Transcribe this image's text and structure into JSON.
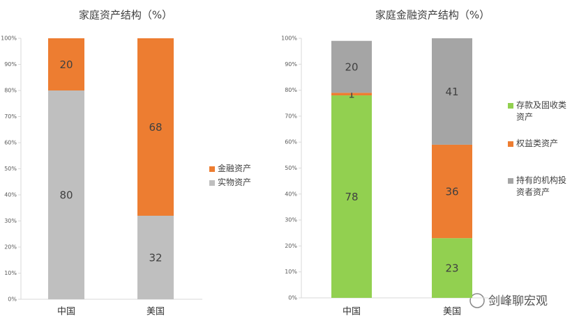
{
  "chart_data": [
    {
      "type": "stacked-bar",
      "title": "家庭资产结构（%）",
      "categories": [
        "中国",
        "美国"
      ],
      "series": [
        {
          "name": "实物资产",
          "color": "#bfbfbf",
          "values": [
            80,
            32
          ]
        },
        {
          "name": "金融资产",
          "color": "#ed7d31",
          "values": [
            20,
            68
          ]
        }
      ],
      "ylim": [
        0,
        100
      ],
      "yticks": [
        {
          "value": 0,
          "label": "0%"
        },
        {
          "value": 10,
          "label": "10%"
        },
        {
          "value": 20,
          "label": "20%"
        },
        {
          "value": 30,
          "label": "30%"
        },
        {
          "value": 40,
          "label": "40%"
        },
        {
          "value": 50,
          "label": "50%"
        },
        {
          "value": 60,
          "label": "60%"
        },
        {
          "value": 70,
          "label": "70%"
        },
        {
          "value": 80,
          "label": "80%"
        },
        {
          "value": 90,
          "label": "90%"
        },
        {
          "value": 100,
          "label": "100%"
        }
      ],
      "legend": "right"
    },
    {
      "type": "stacked-bar",
      "title": "家庭金融资产结构（%）",
      "categories": [
        "中国",
        "美国"
      ],
      "series": [
        {
          "name": "存款及固收类资产",
          "color": "#92d050",
          "values": [
            78,
            23
          ]
        },
        {
          "name": "权益类资产",
          "color": "#ed7d31",
          "values": [
            1,
            36
          ]
        },
        {
          "name": "持有的机构投资者资产",
          "color": "#a5a5a5",
          "values": [
            20,
            41
          ]
        }
      ],
      "ylim": [
        0,
        100
      ],
      "yticks": [
        {
          "value": 0,
          "label": "0%"
        },
        {
          "value": 10,
          "label": "10%"
        },
        {
          "value": 20,
          "label": "20%"
        },
        {
          "value": 30,
          "label": "30%"
        },
        {
          "value": 40,
          "label": "40%"
        },
        {
          "value": 50,
          "label": "50%"
        },
        {
          "value": 60,
          "label": "60%"
        },
        {
          "value": 70,
          "label": "70%"
        },
        {
          "value": 80,
          "label": "80%"
        },
        {
          "value": 90,
          "label": "90%"
        },
        {
          "value": 100,
          "label": "100%"
        }
      ],
      "legend": "right"
    }
  ],
  "watermark": "剑峰聊宏观"
}
